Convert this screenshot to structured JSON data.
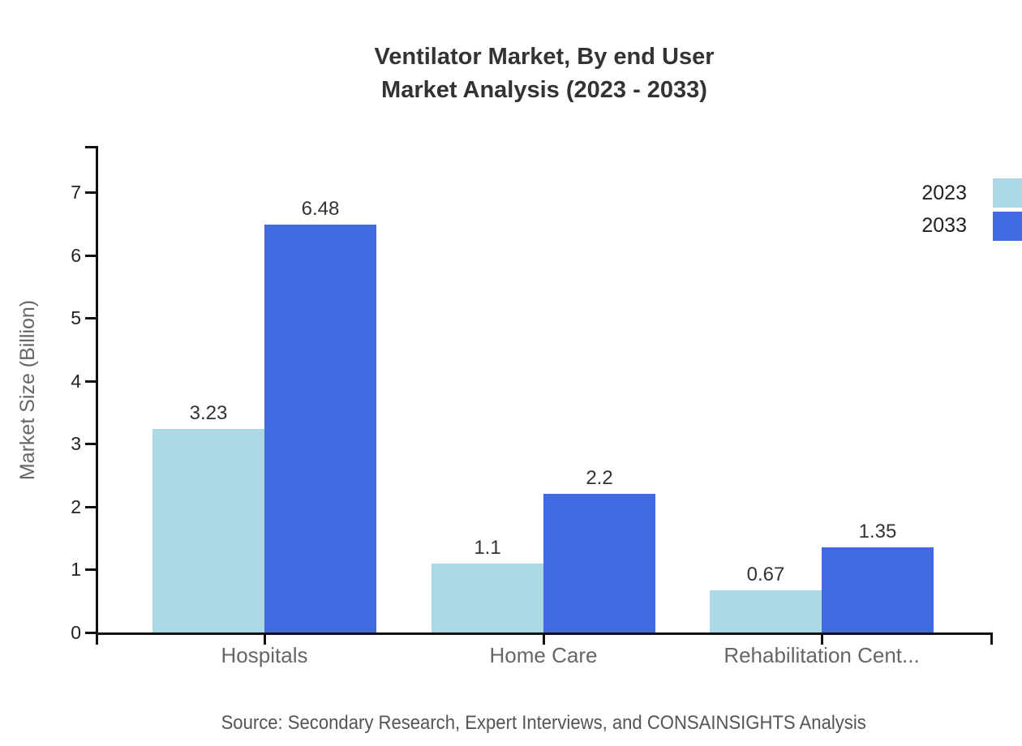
{
  "title": {
    "line1": "Ventilator Market, By end User",
    "line2": "Market Analysis (2023 - 2033)"
  },
  "source": "Source: Secondary Research, Expert Interviews, and CONSAINSIGHTS Analysis",
  "colors": {
    "series_2023": "#add8e6",
    "series_2033": "#4169e1",
    "axis": "#111111",
    "title_text": "#333333",
    "category_text": "#666666",
    "value_label_text": "#333333",
    "source_text": "#555555"
  },
  "chart_data": {
    "type": "bar",
    "title": "Ventilator Market, By end User Market Analysis (2023 - 2033)",
    "xlabel": "",
    "ylabel": "Market Size (Billion)",
    "categories": [
      "Hospitals",
      "Home Care",
      "Rehabilitation Cent..."
    ],
    "series": [
      {
        "name": "2023",
        "color": "#add8e6",
        "values": [
          3.23,
          1.1,
          0.67
        ],
        "value_labels": [
          "3.23",
          "1.1",
          "0.67"
        ]
      },
      {
        "name": "2033",
        "color": "#4169e1",
        "values": [
          6.48,
          2.2,
          1.35
        ],
        "value_labels": [
          "6.48",
          "2.2",
          "1.35"
        ]
      }
    ],
    "yticks": [
      0,
      1,
      2,
      3,
      4,
      5,
      6,
      7
    ],
    "ylim": [
      0,
      7.75
    ],
    "grid": false,
    "legend_position": "top-right",
    "legend_entries": [
      "2023",
      "2033"
    ]
  }
}
